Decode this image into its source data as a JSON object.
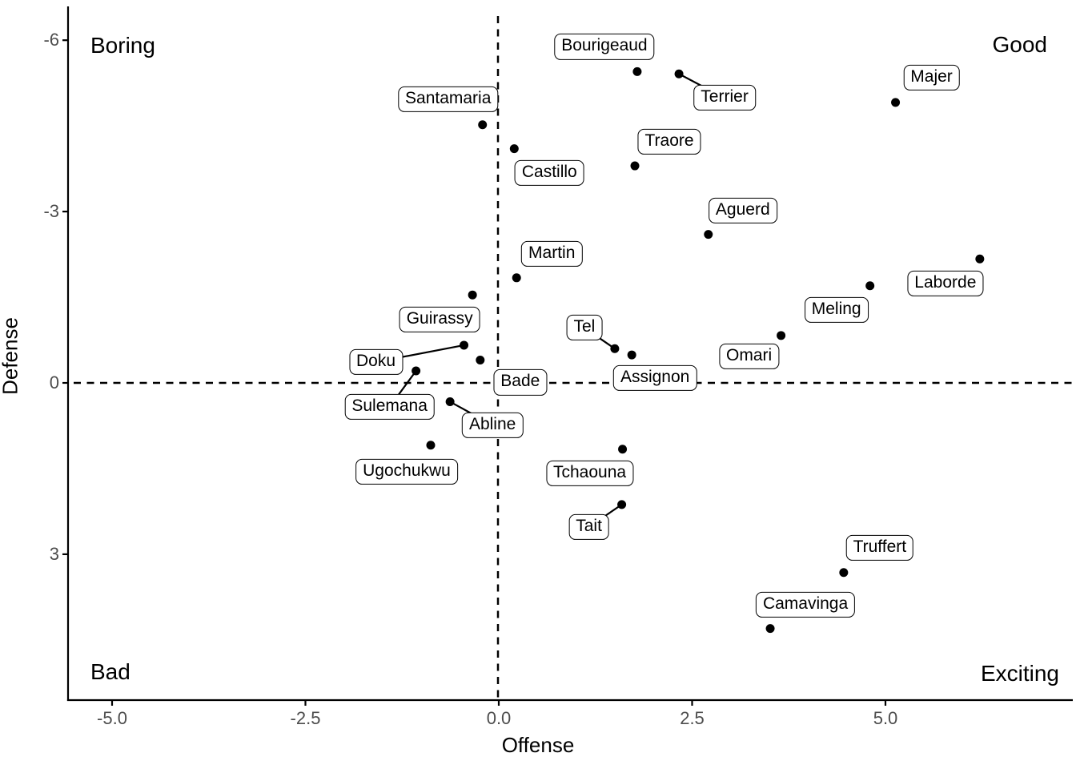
{
  "chart_data": {
    "type": "scatter",
    "title": "",
    "xlabel": "Offense",
    "ylabel": "Defense",
    "x_axis": {
      "tick_values": [
        -5.0,
        -2.5,
        0.0,
        2.5,
        5.0
      ],
      "tick_labels": [
        "-5.0",
        "-2.5",
        "0.0",
        "2.5",
        "5.0"
      ],
      "range": [
        -5.6,
        7.45
      ]
    },
    "y_axis": {
      "tick_values": [
        -6,
        -3,
        0,
        3
      ],
      "tick_labels": [
        "-6",
        "-3",
        "0",
        "3"
      ],
      "range": [
        -6.6,
        5.55
      ],
      "reversed": true
    },
    "grid": "off",
    "reference_lines": [
      {
        "axis": "vertical",
        "at": 0,
        "style": "dashed",
        "color": "#000000"
      },
      {
        "axis": "horizontal",
        "at": 0,
        "style": "dashed",
        "color": "#000000"
      }
    ],
    "quadrant_labels": [
      {
        "text": "Boring",
        "corner": "top-left"
      },
      {
        "text": "Good",
        "corner": "top-right"
      },
      {
        "text": "Bad",
        "corner": "bottom-left"
      },
      {
        "text": "Exciting",
        "corner": "bottom-right"
      }
    ],
    "point_color": "#000000",
    "series": [
      {
        "name": "Bourigeaud",
        "x": 1.79,
        "y": -5.45,
        "label_dx": -41,
        "label_dy": -31,
        "leader": false
      },
      {
        "name": "Terrier",
        "x": 2.33,
        "y": -5.41,
        "label_dx": 57,
        "label_dy": 30,
        "leader": true
      },
      {
        "name": "Majer",
        "x": 5.13,
        "y": -4.91,
        "label_dx": 45,
        "label_dy": -31,
        "leader": false
      },
      {
        "name": "Santamaria",
        "x": -0.21,
        "y": -4.52,
        "label_dx": -43,
        "label_dy": -32,
        "leader": false
      },
      {
        "name": "Castillo",
        "x": 0.2,
        "y": -4.1,
        "label_dx": 44,
        "label_dy": 30,
        "leader": false
      },
      {
        "name": "Traore",
        "x": 1.76,
        "y": -3.8,
        "label_dx": 43,
        "label_dy": -30,
        "leader": false
      },
      {
        "name": "Aguerd",
        "x": 2.71,
        "y": -2.6,
        "label_dx": 43,
        "label_dy": -30,
        "leader": false
      },
      {
        "name": "Laborde",
        "x": 6.22,
        "y": -2.17,
        "label_dx": -43,
        "label_dy": 31,
        "leader": false
      },
      {
        "name": "Meling",
        "x": 4.8,
        "y": -1.7,
        "label_dx": -42,
        "label_dy": 30,
        "leader": false
      },
      {
        "name": "Martin",
        "x": 0.23,
        "y": -1.84,
        "label_dx": 44,
        "label_dy": -30,
        "leader": false
      },
      {
        "name": "Guirassy",
        "x": -0.34,
        "y": -1.54,
        "label_dx": -41,
        "label_dy": 31,
        "leader": false
      },
      {
        "name": "Omari",
        "x": 3.65,
        "y": -0.83,
        "label_dx": -40,
        "label_dy": 26,
        "leader": false
      },
      {
        "name": "Doku",
        "x": -0.45,
        "y": -0.66,
        "label_dx": -110,
        "label_dy": 21,
        "leader": true
      },
      {
        "name": "Tel",
        "x": 1.5,
        "y": -0.6,
        "label_dx": -38,
        "label_dy": -26,
        "leader": true
      },
      {
        "name": "Assignon",
        "x": 1.72,
        "y": -0.49,
        "label_dx": 29,
        "label_dy": 29,
        "leader": false
      },
      {
        "name": "Bade",
        "x": -0.24,
        "y": -0.4,
        "label_dx": 50,
        "label_dy": 28,
        "leader": false
      },
      {
        "name": "Sulemana",
        "x": -1.07,
        "y": -0.21,
        "label_dx": -33,
        "label_dy": 45,
        "leader": true
      },
      {
        "name": "Abline",
        "x": -0.63,
        "y": 0.33,
        "label_dx": 53,
        "label_dy": 29,
        "leader": true
      },
      {
        "name": "Ugochukwu",
        "x": -0.88,
        "y": 1.09,
        "label_dx": -30,
        "label_dy": 33,
        "leader": false
      },
      {
        "name": "Tchaouna",
        "x": 1.6,
        "y": 1.16,
        "label_dx": -41,
        "label_dy": 30,
        "leader": false
      },
      {
        "name": "Tait",
        "x": 1.59,
        "y": 2.13,
        "label_dx": -41,
        "label_dy": 28,
        "leader": true
      },
      {
        "name": "Truffert",
        "x": 4.46,
        "y": 3.32,
        "label_dx": 45,
        "label_dy": -31,
        "leader": false
      },
      {
        "name": "Camavinga",
        "x": 3.51,
        "y": 4.3,
        "label_dx": 44,
        "label_dy": -30,
        "leader": false
      }
    ]
  }
}
